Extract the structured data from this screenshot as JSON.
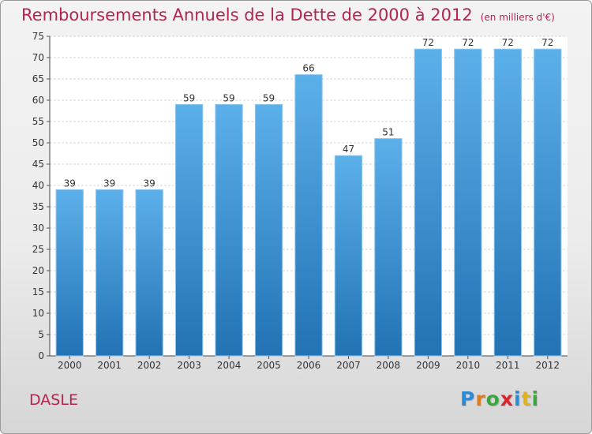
{
  "header": {
    "title": "Remboursements Annuels de la Dette de 2000 à 2012",
    "subtitle": "(en milliers d'€)"
  },
  "footer": {
    "location": "DASLE",
    "brand_letters": [
      "P",
      "r",
      "o",
      "x",
      "i",
      "t",
      "i"
    ],
    "brand_colors": [
      "#2b8bd6",
      "#e07b1e",
      "#3aa83a",
      "#d9262e",
      "#2b8bd6",
      "#e0b21e",
      "#3aa83a"
    ]
  },
  "colors": {
    "bar_top": "#5cb0ea",
    "bar_bottom": "#2272b4",
    "title": "#b4244f"
  },
  "chart_data": {
    "type": "bar",
    "categories": [
      "2000",
      "2001",
      "2002",
      "2003",
      "2004",
      "2005",
      "2006",
      "2007",
      "2008",
      "2009",
      "2010",
      "2011",
      "2012"
    ],
    "values": [
      39,
      39,
      39,
      59,
      59,
      59,
      66,
      47,
      51,
      72,
      72,
      72,
      72
    ],
    "ylim": [
      0,
      75
    ],
    "yticks": [
      0,
      5,
      10,
      15,
      20,
      25,
      30,
      35,
      40,
      45,
      50,
      55,
      60,
      65,
      70,
      75
    ],
    "grid": true,
    "data_labels": true
  }
}
